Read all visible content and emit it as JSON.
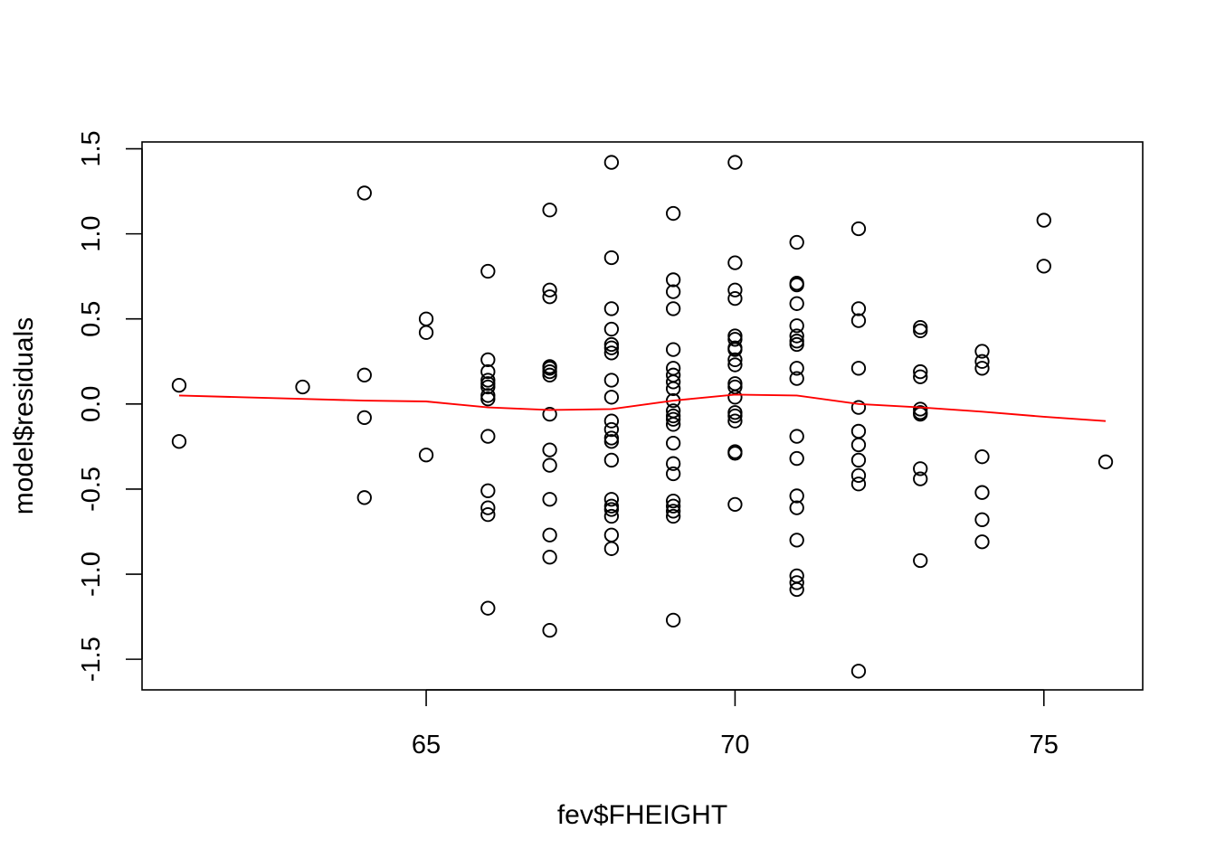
{
  "chart_data": {
    "type": "scatter",
    "xlabel": "fev$FHEIGHT",
    "ylabel": "model$residuals",
    "xlim": [
      60.4,
      76.6
    ],
    "ylim": [
      -1.68,
      1.54
    ],
    "x_ticks": [
      65,
      70,
      75
    ],
    "y_ticks": [
      -1.5,
      -1.0,
      -0.5,
      0.0,
      0.5,
      1.0,
      1.5
    ],
    "y_tick_labels": [
      "-1.5",
      "-1.0",
      "-0.5",
      "0.0",
      "0.5",
      "1.0",
      "1.5"
    ],
    "point_color": "#000000",
    "points": [
      [
        61,
        0.11
      ],
      [
        61,
        -0.22
      ],
      [
        63,
        0.1
      ],
      [
        64,
        1.24
      ],
      [
        64,
        0.17
      ],
      [
        64,
        -0.08
      ],
      [
        64,
        -0.55
      ],
      [
        65,
        0.5
      ],
      [
        65,
        0.42
      ],
      [
        65,
        -0.3
      ],
      [
        66,
        0.78
      ],
      [
        66,
        0.26
      ],
      [
        66,
        0.19
      ],
      [
        66,
        0.14
      ],
      [
        66,
        0.12
      ],
      [
        66,
        0.1
      ],
      [
        66,
        0.05
      ],
      [
        66,
        0.03
      ],
      [
        66,
        -0.19
      ],
      [
        66,
        -0.51
      ],
      [
        66,
        -0.61
      ],
      [
        66,
        -0.65
      ],
      [
        66,
        -1.2
      ],
      [
        67,
        1.14
      ],
      [
        67,
        0.67
      ],
      [
        67,
        0.63
      ],
      [
        67,
        0.22
      ],
      [
        67,
        0.21
      ],
      [
        67,
        0.19
      ],
      [
        67,
        0.17
      ],
      [
        67,
        -0.06
      ],
      [
        67,
        -0.27
      ],
      [
        67,
        -0.36
      ],
      [
        67,
        -0.56
      ],
      [
        67,
        -0.77
      ],
      [
        67,
        -0.9
      ],
      [
        67,
        -1.33
      ],
      [
        68,
        1.42
      ],
      [
        68,
        0.86
      ],
      [
        68,
        0.56
      ],
      [
        68,
        0.44
      ],
      [
        68,
        0.35
      ],
      [
        68,
        0.33
      ],
      [
        68,
        0.3
      ],
      [
        68,
        0.14
      ],
      [
        68,
        0.04
      ],
      [
        68,
        -0.1
      ],
      [
        68,
        -0.15
      ],
      [
        68,
        -0.2
      ],
      [
        68,
        -0.22
      ],
      [
        68,
        -0.33
      ],
      [
        68,
        -0.56
      ],
      [
        68,
        -0.6
      ],
      [
        68,
        -0.62
      ],
      [
        68,
        -0.66
      ],
      [
        68,
        -0.77
      ],
      [
        68,
        -0.85
      ],
      [
        69,
        1.12
      ],
      [
        69,
        0.73
      ],
      [
        69,
        0.66
      ],
      [
        69,
        0.56
      ],
      [
        69,
        0.32
      ],
      [
        69,
        0.21
      ],
      [
        69,
        0.17
      ],
      [
        69,
        0.13
      ],
      [
        69,
        0.09
      ],
      [
        69,
        0.02
      ],
      [
        69,
        -0.04
      ],
      [
        69,
        -0.07
      ],
      [
        69,
        -0.09
      ],
      [
        69,
        -0.12
      ],
      [
        69,
        -0.23
      ],
      [
        69,
        -0.35
      ],
      [
        69,
        -0.41
      ],
      [
        69,
        -0.57
      ],
      [
        69,
        -0.6
      ],
      [
        69,
        -0.63
      ],
      [
        69,
        -0.66
      ],
      [
        69,
        -1.27
      ],
      [
        70,
        1.42
      ],
      [
        70,
        0.83
      ],
      [
        70,
        0.67
      ],
      [
        70,
        0.62
      ],
      [
        70,
        0.4
      ],
      [
        70,
        0.38
      ],
      [
        70,
        0.33
      ],
      [
        70,
        0.32
      ],
      [
        70,
        0.26
      ],
      [
        70,
        0.23
      ],
      [
        70,
        0.12
      ],
      [
        70,
        0.1
      ],
      [
        70,
        0.04
      ],
      [
        70,
        -0.05
      ],
      [
        70,
        -0.07
      ],
      [
        70,
        -0.1
      ],
      [
        70,
        -0.28
      ],
      [
        70,
        -0.29
      ],
      [
        70,
        -0.59
      ],
      [
        71,
        0.95
      ],
      [
        71,
        0.71
      ],
      [
        71,
        0.7
      ],
      [
        71,
        0.59
      ],
      [
        71,
        0.46
      ],
      [
        71,
        0.4
      ],
      [
        71,
        0.37
      ],
      [
        71,
        0.35
      ],
      [
        71,
        0.21
      ],
      [
        71,
        0.15
      ],
      [
        71,
        -0.19
      ],
      [
        71,
        -0.32
      ],
      [
        71,
        -0.54
      ],
      [
        71,
        -0.61
      ],
      [
        71,
        -0.8
      ],
      [
        71,
        -1.01
      ],
      [
        71,
        -1.05
      ],
      [
        71,
        -1.09
      ],
      [
        72,
        1.03
      ],
      [
        72,
        0.56
      ],
      [
        72,
        0.49
      ],
      [
        72,
        0.21
      ],
      [
        72,
        -0.02
      ],
      [
        72,
        -0.16
      ],
      [
        72,
        -0.24
      ],
      [
        72,
        -0.33
      ],
      [
        72,
        -0.42
      ],
      [
        72,
        -0.47
      ],
      [
        72,
        -1.57
      ],
      [
        73,
        0.45
      ],
      [
        73,
        0.43
      ],
      [
        73,
        0.19
      ],
      [
        73,
        0.16
      ],
      [
        73,
        -0.03
      ],
      [
        73,
        -0.05
      ],
      [
        73,
        -0.06
      ],
      [
        73,
        -0.38
      ],
      [
        73,
        -0.44
      ],
      [
        73,
        -0.92
      ],
      [
        74,
        0.31
      ],
      [
        74,
        0.25
      ],
      [
        74,
        0.21
      ],
      [
        74,
        -0.31
      ],
      [
        74,
        -0.52
      ],
      [
        74,
        -0.68
      ],
      [
        74,
        -0.81
      ],
      [
        75,
        1.08
      ],
      [
        75,
        0.81
      ],
      [
        76,
        -0.34
      ]
    ],
    "series": [
      {
        "type": "line",
        "color": "#ff0000",
        "x": [
          61,
          62,
          63,
          64,
          65,
          66,
          67,
          68,
          69,
          70,
          71,
          72,
          73,
          74,
          75,
          76
        ],
        "y": [
          0.05,
          0.04,
          0.03,
          0.02,
          0.015,
          -0.02,
          -0.035,
          -0.03,
          0.02,
          0.055,
          0.05,
          0.0,
          -0.02,
          -0.045,
          -0.075,
          -0.1
        ]
      }
    ]
  }
}
